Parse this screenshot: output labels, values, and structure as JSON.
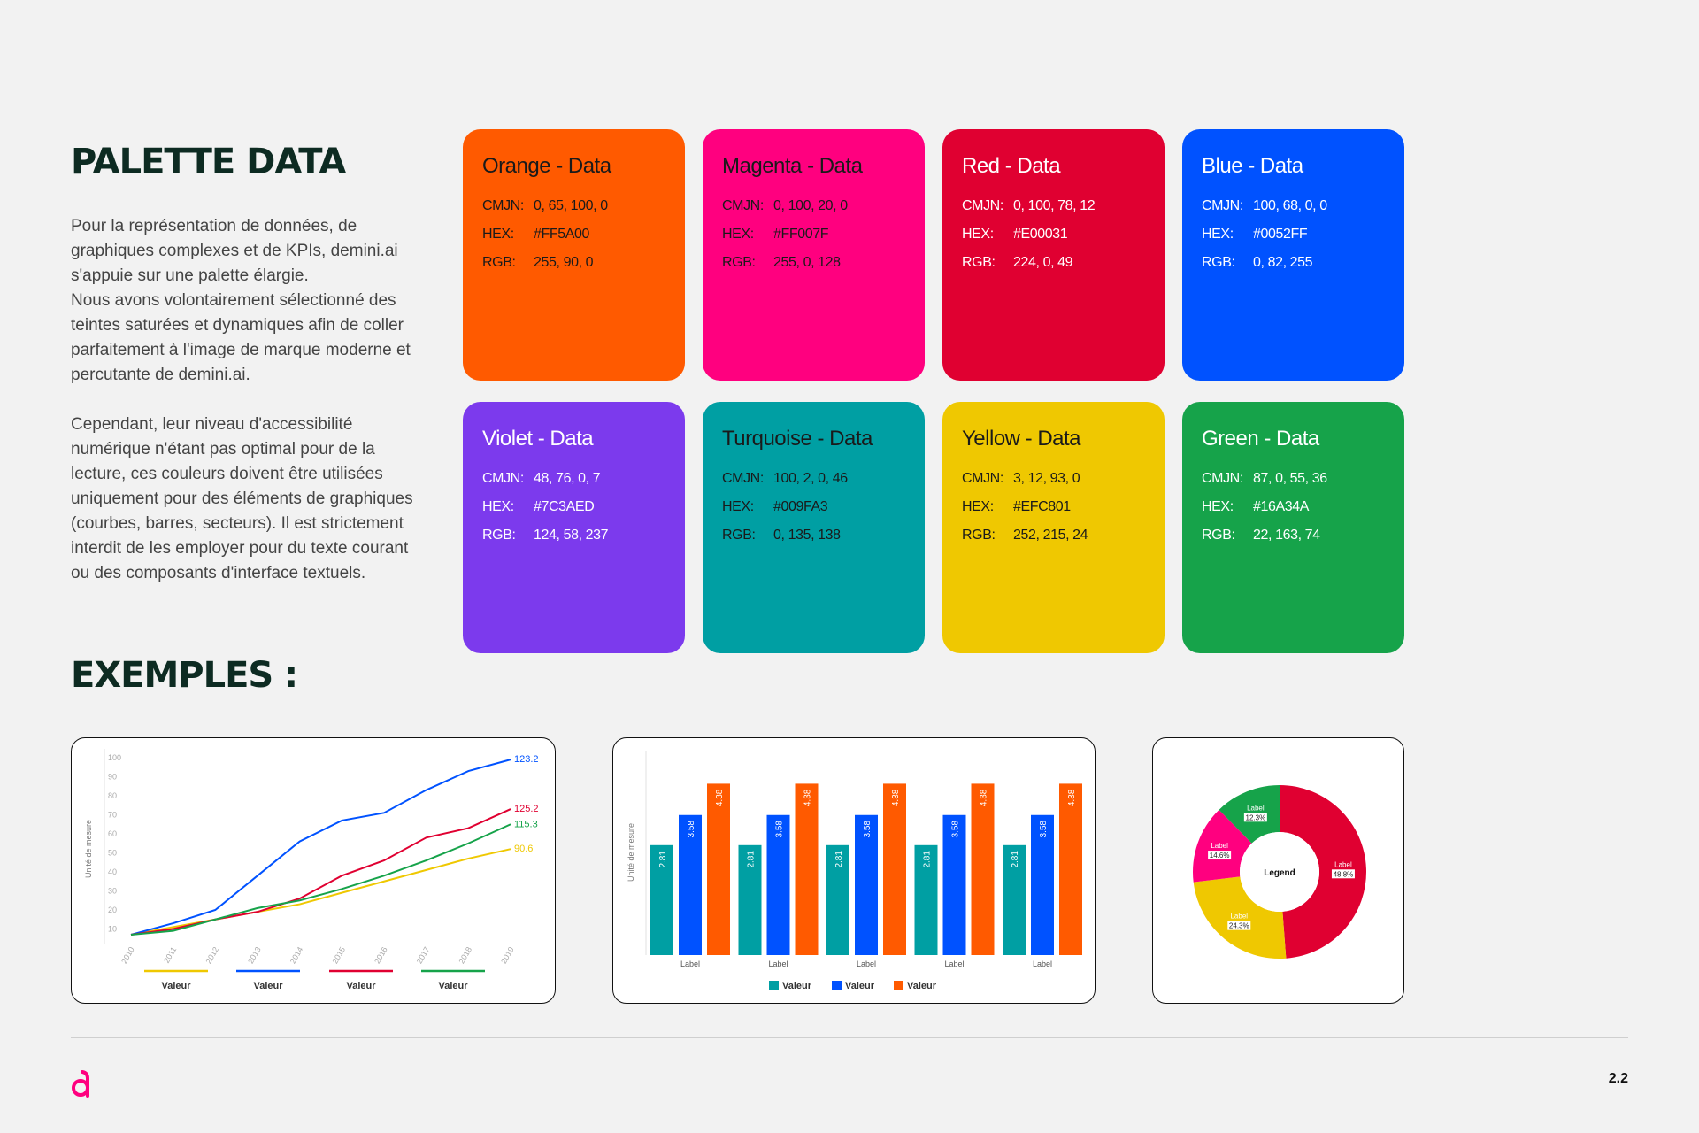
{
  "header": {
    "title": "PALETTE DATA",
    "paragraphs": [
      "Pour la représentation de données, de graphiques complexes et de KPIs, demini.ai s'appuie sur une palette élargie.",
      "Nous avons volontairement sélectionné des teintes saturées et dynamiques afin de coller parfaitement à l'image de marque moderne et percutante de demini.ai.",
      "Cependant, leur niveau d'accessibilité numérique n'étant pas optimal pour de la lecture, ces couleurs doivent être utilisées uniquement pour des éléments de graphiques (courbes, barres, secteurs). Il est strictement interdit de les employer pour du texte courant ou des composants d'interface textuels."
    ]
  },
  "swatch_labels": {
    "cmjn": "CMJN:",
    "hex": "HEX:",
    "rgb": "RGB:"
  },
  "swatches": [
    {
      "name": "Orange - Data",
      "cmjn": "0, 65, 100, 0",
      "hex": "#FF5A00",
      "rgb": "255, 90, 0"
    },
    {
      "name": "Magenta - Data",
      "cmjn": "0, 100, 20, 0",
      "hex": "#FF007F",
      "rgb": "255, 0, 128"
    },
    {
      "name": "Red - Data",
      "cmjn": "0, 100, 78, 12",
      "hex": "#E00031",
      "rgb": "224, 0, 49"
    },
    {
      "name": "Blue - Data",
      "cmjn": "100, 68, 0, 0",
      "hex": "#0052FF",
      "rgb": "0, 82, 255"
    },
    {
      "name": "Violet - Data",
      "cmjn": "48, 76, 0, 7",
      "hex": "#7C3AED",
      "rgb": "124, 58, 237"
    },
    {
      "name": "Turquoise - Data",
      "cmjn": "100, 2, 0, 46",
      "hex": "#009FA3",
      "rgb": "0, 135, 138"
    },
    {
      "name": "Yellow - Data",
      "cmjn": "3, 12, 93, 0",
      "hex": "#EFC801",
      "rgb": "252, 215, 24"
    },
    {
      "name": "Green - Data",
      "cmjn": "87, 0, 55, 36",
      "hex": "#16A34A",
      "rgb": "22, 163, 74"
    }
  ],
  "examples_title": "EXEMPLES :",
  "chart_data": [
    {
      "type": "line",
      "ylabel": "Unité de mesure",
      "categories": [
        "2010",
        "2011",
        "2012",
        "2013",
        "2014",
        "2015",
        "2016",
        "2017",
        "2018",
        "2019"
      ],
      "ylim": [
        0,
        100
      ],
      "yticks": [
        10,
        20,
        30,
        40,
        50,
        60,
        70,
        80,
        90,
        100
      ],
      "series": [
        {
          "name": "Valeur",
          "color": "#EFC801",
          "values": [
            7,
            11,
            15,
            19,
            23,
            29,
            35,
            41,
            47,
            52
          ],
          "annotation": "90.6"
        },
        {
          "name": "Valeur",
          "color": "#0052FF",
          "values": [
            7,
            13,
            20,
            38,
            56,
            67,
            71,
            83,
            93,
            99
          ],
          "annotation": "123.2"
        },
        {
          "name": "Valeur",
          "color": "#E00031",
          "values": [
            7,
            10,
            15,
            19,
            26,
            38,
            46,
            58,
            63,
            73
          ],
          "annotation": "125.2"
        },
        {
          "name": "Valeur",
          "color": "#16A34A",
          "values": [
            7,
            9,
            15,
            21,
            25,
            31,
            38,
            46,
            55,
            65
          ],
          "annotation": "115.3"
        }
      ]
    },
    {
      "type": "bar",
      "ylabel": "Unité de mesure",
      "categories": [
        "Label",
        "Label",
        "Label",
        "Label",
        "Label"
      ],
      "ylim": [
        0,
        5
      ],
      "series": [
        {
          "name": "Valeur",
          "color": "#009FA3",
          "values": [
            2.81,
            2.81,
            2.81,
            2.81,
            2.81
          ]
        },
        {
          "name": "Valeur",
          "color": "#0052FF",
          "values": [
            3.58,
            3.58,
            3.58,
            3.58,
            3.58
          ]
        },
        {
          "name": "Valeur",
          "color": "#FF5A00",
          "values": [
            4.38,
            4.38,
            4.38,
            4.38,
            4.38
          ]
        }
      ]
    },
    {
      "type": "pie",
      "center_label": "Legend",
      "categories": [
        "Label",
        "Label",
        "Label",
        "Label"
      ],
      "values": [
        48.8,
        24.3,
        14.6,
        12.3
      ],
      "value_labels": [
        "48.8%",
        "24.3%",
        "14.6%",
        "12.3%"
      ],
      "colors": [
        "#E00031",
        "#EFC801",
        "#FF007F",
        "#16A34A"
      ]
    }
  ],
  "footer": {
    "page": "2.2"
  }
}
